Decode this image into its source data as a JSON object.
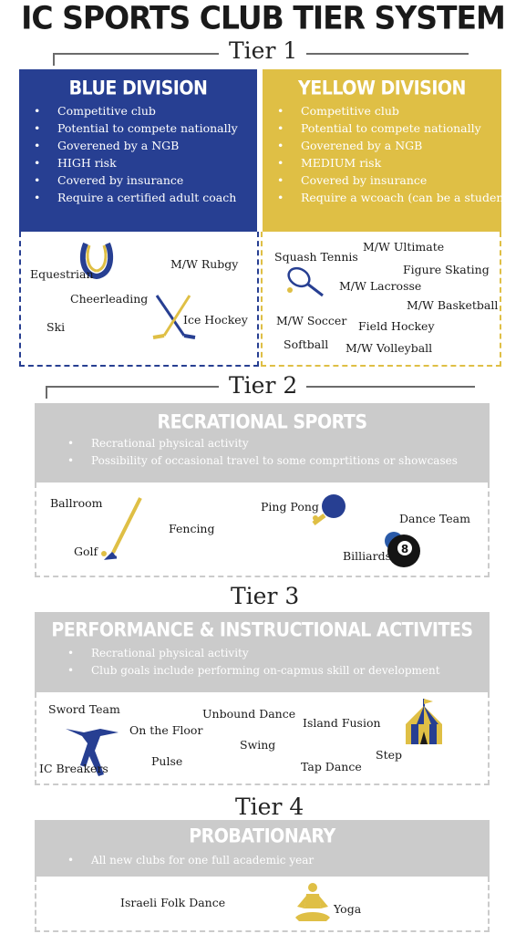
{
  "title": "IC SPORTS CLUB TIER SYSTEM",
  "tiers": {
    "tier1": {
      "label": "Tier 1",
      "blue": {
        "heading": "BLUE DIVISION",
        "bullets": [
          "Competitive club",
          "Potential to compete nationally",
          "Goverened by a NGB",
          "HIGH risk",
          "Covered by insurance",
          "Require a certified adult coach"
        ],
        "sports": [
          "Equestrian",
          "M/W Rubgy",
          "Cheerleading",
          "Ski",
          "Ice Hockey"
        ]
      },
      "yellow": {
        "heading": "YELLOW DIVISION",
        "bullets": [
          "Competitive club",
          "Potential to compete nationally",
          "Goverened by a NGB",
          "MEDIUM risk",
          "Covered by insurance",
          "Require a wcoach (can be a student)"
        ],
        "sports": [
          "Squash Tennis",
          "M/W Ultimate",
          "Figure Skating",
          "M/W Lacrosse",
          "M/W Basketball",
          "M/W Soccer",
          "Field Hockey",
          "Softball",
          "M/W Volleyball"
        ]
      }
    },
    "tier2": {
      "label": "Tier 2",
      "heading": "RECRATIONAL SPORTS",
      "bullets": [
        "Recrational physical activity",
        "Possibility of occasional travel to some comprtitions or showcases"
      ],
      "sports": [
        "Ballroom",
        "Fencing",
        "Golf",
        "Ping Pong",
        "Dance Team",
        "Billiards"
      ]
    },
    "tier3": {
      "label": "Tier 3",
      "heading": "PERFORMANCE & INSTRUCTIONAL ACTIVITES",
      "bullets": [
        "Recrational physical activity",
        "Club goals include performing on-capmus skill or development"
      ],
      "sports": [
        "Sword Team",
        "On the Floor",
        "Unbound Dance",
        "Island Fusion",
        "Swing",
        "Step",
        "Pulse",
        "Tap Dance",
        "IC Breakers"
      ]
    },
    "tier4": {
      "label": "Tier 4",
      "heading": "PROBATIONARY",
      "bullets": [
        "All new clubs for one full academic year"
      ],
      "sports": [
        "Israeli Folk Dance",
        "Yoga"
      ]
    }
  },
  "colors": {
    "blue": "#273f92",
    "yellow": "#dfbf45",
    "gray": "#cbcbcb",
    "eight_ball_blue": "#2a5aa8"
  },
  "icons": [
    "horseshoe-icon",
    "hockey-sticks-icon",
    "tennis-racket-icon",
    "golf-club-icon",
    "ping-pong-paddle-icon",
    "eight-ball-icon",
    "breakdancer-icon",
    "circus-tent-icon",
    "yoga-figure-icon"
  ]
}
